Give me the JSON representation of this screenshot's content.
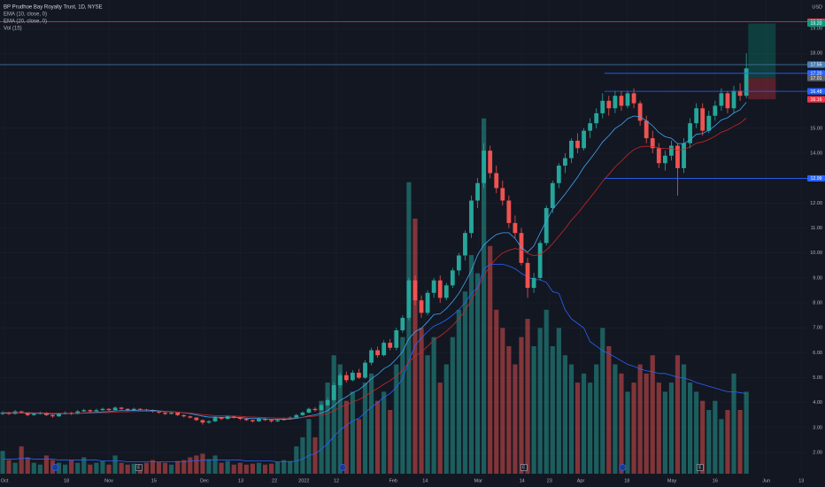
{
  "chart_data": {
    "type": "candlestick",
    "title": "BP Prudhoe Bay Royalty Trust, 1D, NYSE",
    "currency": "USD",
    "up_color": "#26a69a",
    "down_color": "#ef5350",
    "ylim": [
      1.15,
      20.14
    ],
    "yticks": [
      {
        "value": 2,
        "label": "2.00"
      },
      {
        "value": 3,
        "label": "3.00"
      },
      {
        "value": 4,
        "label": "4.00"
      },
      {
        "value": 5,
        "label": "5.00"
      },
      {
        "value": 6,
        "label": "6.00"
      },
      {
        "value": 7,
        "label": "7.00"
      },
      {
        "value": 8,
        "label": "8.00"
      },
      {
        "value": 9,
        "label": "9.00"
      },
      {
        "value": 10,
        "label": "10.00"
      },
      {
        "value": 11,
        "label": "11.00"
      },
      {
        "value": 12,
        "label": "12.00"
      },
      {
        "value": 13,
        "label": "13.00"
      },
      {
        "value": 14,
        "label": "14.00"
      },
      {
        "value": 15,
        "label": "15.00"
      },
      {
        "value": 18,
        "label": "18.00"
      },
      {
        "value": 19,
        "label": "19.00"
      }
    ],
    "xticks": [
      {
        "value": 0.3,
        "label": "Oct"
      },
      {
        "value": 10.2,
        "label": "18"
      },
      {
        "value": 17,
        "label": "Nov"
      },
      {
        "value": 24.2,
        "label": "15"
      },
      {
        "value": 32.3,
        "label": "Dec"
      },
      {
        "value": 38.1,
        "label": "13"
      },
      {
        "value": 43.5,
        "label": "22"
      },
      {
        "value": 48.2,
        "label": "2022"
      },
      {
        "value": 53.4,
        "label": "12"
      },
      {
        "value": 62.5,
        "label": "Feb"
      },
      {
        "value": 67.6,
        "label": "14"
      },
      {
        "value": 76.1,
        "label": "Mar"
      },
      {
        "value": 83.1,
        "label": "14"
      },
      {
        "value": 87.5,
        "label": "23"
      },
      {
        "value": 92.5,
        "label": "Apr"
      },
      {
        "value": 99.9,
        "label": "18"
      },
      {
        "value": 107.1,
        "label": "May"
      },
      {
        "value": 114,
        "label": "16"
      },
      {
        "value": 122.2,
        "label": "Jun"
      },
      {
        "value": 127.8,
        "label": "13"
      }
    ],
    "candles": [
      [
        3.55,
        3.66,
        3.5,
        3.6
      ],
      [
        3.6,
        3.64,
        3.5,
        3.55
      ],
      [
        3.55,
        3.7,
        3.52,
        3.65
      ],
      [
        3.65,
        3.68,
        3.56,
        3.6
      ],
      [
        3.6,
        3.62,
        3.45,
        3.5
      ],
      [
        3.5,
        3.6,
        3.47,
        3.55
      ],
      [
        3.55,
        3.64,
        3.52,
        3.6
      ],
      [
        3.6,
        3.62,
        3.46,
        3.5
      ],
      [
        3.5,
        3.54,
        3.4,
        3.45
      ],
      [
        3.45,
        3.6,
        3.43,
        3.55
      ],
      [
        3.55,
        3.65,
        3.52,
        3.6
      ],
      [
        3.6,
        3.63,
        3.5,
        3.55
      ],
      [
        3.55,
        3.7,
        3.53,
        3.65
      ],
      [
        3.65,
        3.75,
        3.62,
        3.7
      ],
      [
        3.7,
        3.73,
        3.6,
        3.65
      ],
      [
        3.65,
        3.76,
        3.63,
        3.7
      ],
      [
        3.7,
        3.8,
        3.67,
        3.75
      ],
      [
        3.75,
        3.78,
        3.66,
        3.7
      ],
      [
        3.7,
        3.85,
        3.68,
        3.8
      ],
      [
        3.8,
        3.83,
        3.7,
        3.75
      ],
      [
        3.75,
        3.77,
        3.65,
        3.7
      ],
      [
        3.7,
        3.8,
        3.68,
        3.75
      ],
      [
        3.75,
        3.78,
        3.68,
        3.72
      ],
      [
        3.72,
        3.75,
        3.66,
        3.7
      ],
      [
        3.7,
        3.72,
        3.6,
        3.65
      ],
      [
        3.65,
        3.68,
        3.55,
        3.6
      ],
      [
        3.6,
        3.63,
        3.5,
        3.55
      ],
      [
        3.55,
        3.65,
        3.52,
        3.6
      ],
      [
        3.6,
        3.62,
        3.46,
        3.5
      ],
      [
        3.5,
        3.53,
        3.4,
        3.45
      ],
      [
        3.45,
        3.48,
        3.36,
        3.4
      ],
      [
        3.4,
        3.42,
        3.26,
        3.3
      ],
      [
        3.3,
        3.33,
        3.12,
        3.2
      ],
      [
        3.2,
        3.3,
        3.15,
        3.25
      ],
      [
        3.25,
        3.45,
        3.22,
        3.4
      ],
      [
        3.4,
        3.43,
        3.3,
        3.35
      ],
      [
        3.35,
        3.5,
        3.32,
        3.45
      ],
      [
        3.45,
        3.48,
        3.36,
        3.4
      ],
      [
        3.4,
        3.42,
        3.3,
        3.35
      ],
      [
        3.35,
        3.38,
        3.26,
        3.3
      ],
      [
        3.3,
        3.32,
        3.2,
        3.25
      ],
      [
        3.25,
        3.4,
        3.22,
        3.35
      ],
      [
        3.35,
        3.38,
        3.26,
        3.3
      ],
      [
        3.3,
        3.32,
        3.2,
        3.25
      ],
      [
        3.25,
        3.35,
        3.22,
        3.3
      ],
      [
        3.3,
        3.4,
        3.28,
        3.35
      ],
      [
        3.35,
        3.45,
        3.32,
        3.4
      ],
      [
        3.4,
        3.55,
        3.38,
        3.5
      ],
      [
        3.5,
        3.65,
        3.47,
        3.6
      ],
      [
        3.6,
        3.8,
        3.57,
        3.75
      ],
      [
        3.75,
        3.82,
        3.64,
        3.7
      ],
      [
        3.7,
        3.95,
        3.68,
        3.9
      ],
      [
        3.9,
        4.2,
        3.85,
        4.1
      ],
      [
        4.1,
        4.8,
        4.05,
        4.7
      ],
      [
        4.7,
        5.2,
        4.6,
        5.1
      ],
      [
        5.1,
        5.25,
        4.8,
        4.9
      ],
      [
        4.9,
        5.3,
        4.85,
        5.2
      ],
      [
        5.2,
        5.35,
        4.95,
        5.0
      ],
      [
        5.0,
        5.7,
        4.95,
        5.6
      ],
      [
        5.6,
        6.2,
        5.5,
        6.1
      ],
      [
        6.1,
        6.25,
        5.8,
        5.9
      ],
      [
        5.9,
        6.5,
        5.85,
        6.4
      ],
      [
        6.4,
        6.55,
        6.1,
        6.2
      ],
      [
        6.2,
        7.0,
        6.1,
        6.9
      ],
      [
        6.9,
        7.5,
        6.8,
        7.4
      ],
      [
        7.4,
        9.0,
        7.3,
        8.9
      ],
      [
        8.9,
        9.1,
        7.9,
        8.1
      ],
      [
        8.1,
        8.3,
        7.4,
        7.6
      ],
      [
        7.6,
        8.5,
        7.5,
        8.4
      ],
      [
        8.4,
        9.0,
        8.2,
        8.9
      ],
      [
        8.9,
        9.1,
        8.0,
        8.2
      ],
      [
        8.2,
        8.8,
        8.1,
        8.7
      ],
      [
        8.7,
        9.4,
        8.6,
        9.3
      ],
      [
        9.3,
        10.0,
        9.1,
        9.9
      ],
      [
        9.9,
        10.9,
        9.7,
        10.8
      ],
      [
        10.8,
        12.3,
        10.6,
        12.1
      ],
      [
        12.1,
        13.0,
        11.8,
        12.8
      ],
      [
        12.8,
        14.4,
        12.6,
        14.1
      ],
      [
        14.1,
        14.3,
        13.0,
        13.2
      ],
      [
        13.2,
        13.5,
        12.4,
        12.6
      ],
      [
        12.6,
        12.9,
        11.9,
        12.1
      ],
      [
        12.1,
        12.3,
        11.0,
        11.2
      ],
      [
        11.2,
        11.5,
        10.6,
        10.8
      ],
      [
        10.8,
        11.0,
        9.5,
        9.6
      ],
      [
        9.6,
        9.8,
        8.2,
        8.6
      ],
      [
        8.6,
        9.2,
        8.4,
        9.0
      ],
      [
        9.0,
        10.5,
        8.9,
        10.4
      ],
      [
        10.4,
        11.9,
        10.3,
        11.8
      ],
      [
        11.8,
        12.9,
        11.6,
        12.8
      ],
      [
        12.8,
        13.6,
        12.6,
        13.5
      ],
      [
        13.5,
        14.0,
        13.2,
        13.8
      ],
      [
        13.8,
        14.6,
        13.6,
        14.5
      ],
      [
        14.5,
        14.8,
        14.0,
        14.2
      ],
      [
        14.2,
        15.0,
        14.1,
        14.9
      ],
      [
        14.9,
        15.4,
        14.6,
        15.2
      ],
      [
        15.2,
        15.8,
        15.0,
        15.6
      ],
      [
        15.6,
        16.4,
        15.4,
        16.1
      ],
      [
        16.1,
        16.3,
        15.5,
        15.8
      ],
      [
        15.8,
        16.5,
        15.6,
        16.3
      ],
      [
        16.3,
        16.5,
        15.7,
        15.9
      ],
      [
        15.9,
        16.5,
        15.8,
        16.4
      ],
      [
        16.4,
        16.6,
        15.8,
        16.0
      ],
      [
        16.0,
        16.1,
        15.1,
        15.3
      ],
      [
        15.3,
        15.5,
        14.4,
        14.6
      ],
      [
        14.6,
        14.9,
        14.0,
        14.2
      ],
      [
        14.2,
        14.4,
        13.4,
        13.6
      ],
      [
        13.6,
        14.1,
        13.3,
        13.9
      ],
      [
        13.9,
        14.5,
        13.7,
        14.3
      ],
      [
        14.3,
        14.4,
        12.3,
        13.4
      ],
      [
        13.4,
        14.6,
        13.2,
        14.4
      ],
      [
        14.4,
        15.4,
        14.2,
        15.2
      ],
      [
        15.2,
        16.0,
        15.0,
        15.8
      ],
      [
        15.8,
        16.0,
        14.7,
        14.9
      ],
      [
        14.9,
        15.7,
        14.8,
        15.5
      ],
      [
        15.5,
        16.1,
        15.3,
        15.9
      ],
      [
        15.9,
        16.6,
        15.7,
        16.4
      ],
      [
        16.4,
        16.5,
        15.6,
        15.8
      ],
      [
        15.8,
        16.7,
        15.6,
        16.5
      ],
      [
        16.5,
        16.8,
        16.1,
        16.3
      ],
      [
        16.3,
        18.0,
        16.2,
        17.4
      ]
    ],
    "vlim": [
      0,
      5.2
    ],
    "volume": [
      0.25,
      0.15,
      0.12,
      0.3,
      0.18,
      0.12,
      0.1,
      0.2,
      0.15,
      0.12,
      0.1,
      0.15,
      0.12,
      0.18,
      0.1,
      0.12,
      0.14,
      0.1,
      0.2,
      0.12,
      0.1,
      0.11,
      0.1,
      0.12,
      0.15,
      0.13,
      0.12,
      0.1,
      0.14,
      0.15,
      0.18,
      0.2,
      0.22,
      0.16,
      0.2,
      0.12,
      0.14,
      0.1,
      0.12,
      0.1,
      0.11,
      0.12,
      0.1,
      0.11,
      0.13,
      0.15,
      0.14,
      0.3,
      0.4,
      0.6,
      0.4,
      0.8,
      1.0,
      1.3,
      1.2,
      0.8,
      0.9,
      0.6,
      1.0,
      1.1,
      0.8,
      0.9,
      0.7,
      1.2,
      1.5,
      3.2,
      2.8,
      1.6,
      1.3,
      1.5,
      1.0,
      1.2,
      1.5,
      1.8,
      2.0,
      2.4,
      2.2,
      3.9,
      2.5,
      1.8,
      1.6,
      1.4,
      1.2,
      1.5,
      1.7,
      1.4,
      1.6,
      1.8,
      1.4,
      1.6,
      1.3,
      1.2,
      1.0,
      1.1,
      1.0,
      1.2,
      1.6,
      1.4,
      1.2,
      1.1,
      0.9,
      1.0,
      1.2,
      1.1,
      1.3,
      1.0,
      0.9,
      1.0,
      1.3,
      1.2,
      1.0,
      0.9,
      0.8,
      0.7,
      0.8,
      0.6,
      0.7,
      1.1,
      0.7,
      0.9
    ],
    "series": [
      {
        "name": "EMA (10, close, 0)",
        "color": "#42a5f5",
        "values": [
          3.58,
          3.58,
          3.59,
          3.59,
          3.58,
          3.57,
          3.58,
          3.56,
          3.55,
          3.55,
          3.56,
          3.56,
          3.57,
          3.59,
          3.6,
          3.61,
          3.63,
          3.64,
          3.67,
          3.68,
          3.68,
          3.69,
          3.7,
          3.7,
          3.69,
          3.67,
          3.65,
          3.64,
          3.62,
          3.59,
          3.56,
          3.51,
          3.46,
          3.42,
          3.42,
          3.41,
          3.42,
          3.41,
          3.4,
          3.38,
          3.36,
          3.36,
          3.35,
          3.33,
          3.33,
          3.33,
          3.34,
          3.37,
          3.41,
          3.47,
          3.51,
          3.58,
          3.68,
          3.87,
          4.09,
          4.23,
          4.4,
          4.51,
          4.71,
          4.96,
          5.13,
          5.36,
          5.5,
          5.75,
          6.04,
          6.57,
          6.84,
          6.98,
          7.24,
          7.53,
          7.56,
          7.77,
          8.05,
          8.38,
          8.82,
          9.3,
          9.92,
          10.32,
          10.55,
          10.74,
          10.81,
          10.81,
          10.58,
          10.22,
          10.03,
          10.28,
          10.8,
          11.29,
          11.75,
          12.05,
          12.36,
          12.7,
          13.04,
          13.44,
          13.76,
          14.09,
          14.45,
          14.7,
          14.99,
          15.15,
          15.38,
          15.49,
          15.46,
          15.3,
          15.1,
          14.83,
          14.66,
          14.6,
          14.38,
          14.38,
          14.53,
          14.76,
          14.79,
          14.92,
          15.1,
          15.33,
          15.42,
          15.61,
          15.74,
          16.04
        ]
      },
      {
        "name": "EMA (20, close, 0)",
        "color": "#c62828",
        "values": [
          3.6,
          3.6,
          3.6,
          3.6,
          3.6,
          3.59,
          3.59,
          3.58,
          3.57,
          3.57,
          3.57,
          3.57,
          3.57,
          3.58,
          3.58,
          3.59,
          3.6,
          3.6,
          3.62,
          3.63,
          3.63,
          3.64,
          3.65,
          3.65,
          3.65,
          3.65,
          3.64,
          3.63,
          3.62,
          3.6,
          3.58,
          3.55,
          3.52,
          3.5,
          3.48,
          3.47,
          3.47,
          3.46,
          3.45,
          3.43,
          3.42,
          3.41,
          3.4,
          3.39,
          3.38,
          3.38,
          3.38,
          3.39,
          3.41,
          3.44,
          3.46,
          3.5,
          3.56,
          3.67,
          3.81,
          3.91,
          4.03,
          4.12,
          4.26,
          4.43,
          4.57,
          4.74,
          4.88,
          5.07,
          5.29,
          5.63,
          5.87,
          6.03,
          6.26,
          6.51,
          6.67,
          6.86,
          7.09,
          7.36,
          7.69,
          8.11,
          8.56,
          9.09,
          9.48,
          9.78,
          10.0,
          10.11,
          10.18,
          10.12,
          9.98,
          9.89,
          9.94,
          10.12,
          10.37,
          10.67,
          10.97,
          11.31,
          11.58,
          11.9,
          12.21,
          12.53,
          12.87,
          13.15,
          13.45,
          13.68,
          13.94,
          14.14,
          14.25,
          14.28,
          14.27,
          14.21,
          14.18,
          14.19,
          14.12,
          14.15,
          14.25,
          14.4,
          14.45,
          14.55,
          14.68,
          14.84,
          14.93,
          15.08,
          15.2,
          15.41
        ]
      }
    ],
    "volume_ma": {
      "name": "Vol (15)",
      "color": "#2962ff",
      "values": [
        0.16,
        0.16,
        0.16,
        0.17,
        0.17,
        0.16,
        0.16,
        0.16,
        0.16,
        0.15,
        0.15,
        0.15,
        0.15,
        0.15,
        0.15,
        0.15,
        0.14,
        0.14,
        0.14,
        0.14,
        0.13,
        0.13,
        0.13,
        0.13,
        0.13,
        0.13,
        0.13,
        0.13,
        0.13,
        0.13,
        0.14,
        0.14,
        0.15,
        0.15,
        0.15,
        0.15,
        0.15,
        0.15,
        0.15,
        0.14,
        0.14,
        0.14,
        0.14,
        0.14,
        0.13,
        0.13,
        0.13,
        0.14,
        0.16,
        0.2,
        0.22,
        0.27,
        0.33,
        0.41,
        0.48,
        0.53,
        0.58,
        0.61,
        0.67,
        0.73,
        0.78,
        0.84,
        0.88,
        0.95,
        1.04,
        1.24,
        1.41,
        1.49,
        1.56,
        1.62,
        1.65,
        1.69,
        1.74,
        1.8,
        1.88,
        1.98,
        2.04,
        2.25,
        2.3,
        2.3,
        2.3,
        2.28,
        2.25,
        2.2,
        2.16,
        2.13,
        2.13,
        2.1,
        2.0,
        1.98,
        1.8,
        1.7,
        1.65,
        1.6,
        1.45,
        1.4,
        1.35,
        1.32,
        1.28,
        1.24,
        1.2,
        1.18,
        1.15,
        1.13,
        1.12,
        1.1,
        1.1,
        1.08,
        1.06,
        1.05,
        1.03,
        1.0,
        0.98,
        0.96,
        0.94,
        0.92,
        0.9,
        0.9,
        0.89,
        0.88
      ]
    },
    "levels": [
      {
        "value": 19.27,
        "label": "19.27",
        "color": "#f23645",
        "line": "full"
      },
      {
        "value": 17.55,
        "label": "17.55",
        "color": "#4a7fb5",
        "line": "full"
      },
      {
        "value": 17.2,
        "label": "17.20",
        "color": "#2962ff",
        "line": "ray"
      },
      {
        "value": 16.48,
        "label": "16.48",
        "color": "#2962ff",
        "line": "ray"
      },
      {
        "value": 12.99,
        "label": "12.99",
        "color": "#2962ff",
        "line": "ray"
      }
    ],
    "ray_start": 96.3,
    "position": {
      "entry": {
        "value": 17.01,
        "label": "17.01",
        "color": "#5d606b"
      },
      "target": {
        "value": 19.2,
        "label": "19.20",
        "color": "#089981"
      },
      "stop": {
        "value": 16.16,
        "label": "16.16",
        "color": "#f23645"
      },
      "start": 119.3,
      "end": 123.7
    },
    "earnings_label": "E",
    "earnings": [
      21.8,
      83.4,
      111.6
    ],
    "dividends": [
      8.4,
      54.4,
      99.2
    ]
  }
}
